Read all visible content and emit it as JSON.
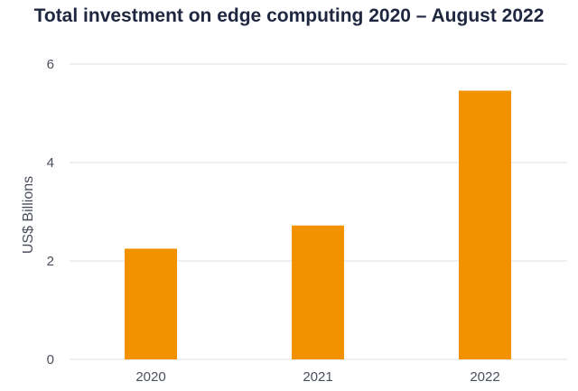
{
  "chart_data": {
    "type": "bar",
    "title": "Total investment on edge computing 2020 – August 2022",
    "xlabel": "",
    "ylabel": "US$ Billions",
    "categories": [
      "2020",
      "2021",
      "2022"
    ],
    "values": [
      2.25,
      2.72,
      5.46
    ],
    "ylim": [
      0,
      6
    ],
    "yticks": [
      "0",
      "2",
      "4",
      "6"
    ],
    "grid": true,
    "bar_color": "#f39200",
    "legend": "none"
  }
}
